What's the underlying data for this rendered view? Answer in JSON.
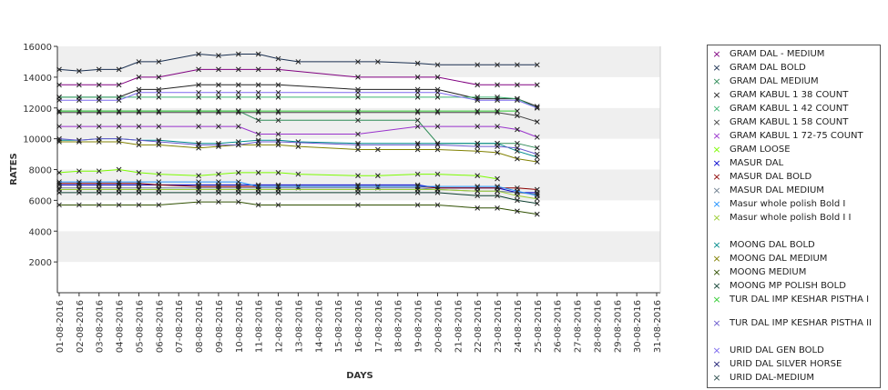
{
  "chart_data": {
    "type": "line",
    "title": "",
    "xlabel": "DAYS",
    "ylabel": "RATES",
    "ylim": [
      0,
      16000
    ],
    "yticks": [
      2000,
      4000,
      6000,
      8000,
      10000,
      12000,
      14000,
      16000
    ],
    "grid": true,
    "legend_position": "right",
    "x": [
      "01-08-2016",
      "02-08-2016",
      "03-08-2016",
      "04-08-2016",
      "05-08-2016",
      "06-08-2016",
      "07-08-2016",
      "08-08-2016",
      "09-08-2016",
      "10-08-2016",
      "11-08-2016",
      "12-08-2016",
      "13-08-2016",
      "14-08-2016",
      "15-08-2016",
      "16-08-2016",
      "17-08-2016",
      "18-08-2016",
      "19-08-2016",
      "20-08-2016",
      "21-08-2016",
      "22-08-2016",
      "23-08-2016",
      "24-08-2016",
      "25-08-2016",
      "26-08-2016",
      "27-08-2016",
      "28-08-2016",
      "29-08-2016",
      "30-08-2016",
      "31-08-2016"
    ],
    "series": [
      {
        "name": "GRAM DAL - MEDIUM",
        "color": "#800080",
        "values": [
          13500,
          13500,
          13500,
          13500,
          14000,
          14000,
          null,
          14500,
          14500,
          14500,
          14500,
          14500,
          null,
          null,
          null,
          14000,
          null,
          null,
          14000,
          14000,
          null,
          13500,
          13500,
          13500,
          13500,
          null,
          null,
          null,
          null,
          null,
          null
        ]
      },
      {
        "name": "GRAM DAL BOLD",
        "color": "#1a2f50",
        "values": [
          14500,
          14400,
          14500,
          14500,
          15000,
          15000,
          null,
          15500,
          15400,
          15500,
          15500,
          15200,
          15000,
          null,
          null,
          15000,
          15000,
          null,
          14900,
          14800,
          null,
          14800,
          14800,
          14800,
          14800,
          null,
          null,
          null,
          null,
          null,
          null
        ]
      },
      {
        "name": "GRAM DAL MEDIUM",
        "color": "#2e8b57",
        "values": [
          11800,
          11800,
          11800,
          11800,
          11800,
          11800,
          null,
          11800,
          11800,
          11800,
          11200,
          11200,
          null,
          null,
          null,
          11200,
          null,
          null,
          11200,
          9700,
          null,
          9700,
          9700,
          9700,
          9400,
          null,
          null,
          null,
          null,
          null,
          null
        ]
      },
      {
        "name": "GRAM KABUL 1 38 COUNT",
        "color": "#222222",
        "values": [
          12700,
          12700,
          12700,
          12700,
          13200,
          13200,
          null,
          13500,
          13500,
          13500,
          13500,
          13500,
          null,
          null,
          null,
          13200,
          null,
          null,
          13200,
          13200,
          null,
          12600,
          12600,
          12600,
          12100,
          null,
          null,
          null,
          null,
          null,
          null
        ]
      },
      {
        "name": "GRAM KABUL 1 42 COUNT",
        "color": "#3cb371",
        "values": [
          12700,
          12700,
          12700,
          12700,
          12700,
          12700,
          null,
          12700,
          12700,
          12700,
          12700,
          12700,
          null,
          null,
          null,
          12700,
          null,
          null,
          12700,
          12700,
          null,
          12700,
          12700,
          12600,
          12000,
          null,
          null,
          null,
          null,
          null,
          null
        ]
      },
      {
        "name": "GRAM KABUL 1 58 COUNT",
        "color": "#444444",
        "values": [
          11700,
          11700,
          11700,
          11700,
          11700,
          11700,
          null,
          11700,
          11700,
          11700,
          11700,
          11700,
          null,
          null,
          null,
          11700,
          null,
          null,
          11700,
          11700,
          null,
          11700,
          11700,
          11500,
          11100,
          null,
          null,
          null,
          null,
          null,
          null
        ]
      },
      {
        "name": "GRAM KABUL 1 72-75 COUNT",
        "color": "#9932cc",
        "values": [
          10800,
          10800,
          10800,
          10800,
          10800,
          10800,
          null,
          10800,
          10800,
          10800,
          10300,
          10300,
          null,
          null,
          null,
          10300,
          null,
          null,
          10800,
          10800,
          null,
          10800,
          10800,
          10600,
          10100,
          null,
          null,
          null,
          null,
          null,
          null
        ]
      },
      {
        "name": "GRAM LOOSE",
        "color": "#7cfc00",
        "values": [
          7800,
          7900,
          7900,
          8000,
          7800,
          7700,
          null,
          7600,
          7700,
          7800,
          7800,
          7800,
          7700,
          null,
          null,
          7600,
          7600,
          null,
          7700,
          7700,
          null,
          7600,
          7400,
          null,
          null,
          null,
          null,
          null,
          null,
          null,
          null
        ]
      },
      {
        "name": "MASUR DAL",
        "color": "#0000cd",
        "values": [
          7000,
          7000,
          7000,
          7000,
          7000,
          7000,
          null,
          7000,
          7000,
          7000,
          7000,
          7000,
          null,
          null,
          null,
          7000,
          null,
          null,
          7000,
          6800,
          null,
          6800,
          6800,
          6500,
          6500,
          null,
          null,
          null,
          null,
          null,
          null
        ]
      },
      {
        "name": "MASUR DAL BOLD",
        "color": "#8b0000",
        "values": [
          7100,
          7100,
          7100,
          7100,
          7100,
          7000,
          null,
          6900,
          6900,
          6900,
          6900,
          6900,
          6900,
          null,
          null,
          6900,
          6900,
          null,
          6900,
          6800,
          null,
          6800,
          6800,
          6800,
          6700,
          null,
          null,
          null,
          null,
          null,
          null
        ]
      },
      {
        "name": "MASUR DAL MEDIUM",
        "color": "#708090",
        "values": [
          6800,
          6800,
          6800,
          6800,
          6800,
          6800,
          null,
          6800,
          6800,
          6800,
          6800,
          6800,
          6800,
          null,
          null,
          6800,
          6800,
          null,
          6800,
          6700,
          null,
          6600,
          6600,
          6500,
          6400,
          null,
          null,
          null,
          null,
          null,
          null
        ]
      },
      {
        "name": "Masur whole polish Bold I",
        "color": "#1e90ff",
        "values": [
          7200,
          7200,
          7200,
          7200,
          7200,
          7200,
          null,
          7200,
          7200,
          7200,
          6900,
          6900,
          null,
          null,
          null,
          6900,
          null,
          null,
          6900,
          6900,
          null,
          6900,
          6900,
          6600,
          6300,
          null,
          null,
          null,
          null,
          null,
          null
        ]
      },
      {
        "name": "Masur whole polish Bold I I",
        "color": "#9acd32",
        "values": [
          6700,
          6700,
          6700,
          6700,
          6700,
          6700,
          null,
          6700,
          6700,
          6700,
          6700,
          6700,
          null,
          null,
          null,
          6700,
          null,
          null,
          6700,
          6700,
          null,
          6600,
          6600,
          6300,
          6100,
          null,
          null,
          null,
          null,
          null,
          null
        ]
      },
      {
        "name": "MOONG DAL BOLD",
        "color": "#008b8b",
        "values": [
          9900,
          9900,
          10000,
          10000,
          9900,
          9900,
          null,
          9700,
          9700,
          9800,
          9900,
          9900,
          9800,
          null,
          null,
          9700,
          null,
          null,
          9700,
          9700,
          null,
          9700,
          9700,
          9200,
          8800,
          null,
          null,
          null,
          null,
          null,
          null
        ]
      },
      {
        "name": "MOONG DAL MEDIUM",
        "color": "#808000",
        "values": [
          9800,
          9800,
          9800,
          9800,
          9600,
          9600,
          null,
          9400,
          9500,
          9600,
          9600,
          9600,
          9500,
          null,
          null,
          9300,
          9300,
          null,
          9300,
          9300,
          null,
          9200,
          9100,
          8700,
          8500,
          null,
          null,
          null,
          null,
          null,
          null
        ]
      },
      {
        "name": "MOONG MEDIUM",
        "color": "#2f4f00",
        "values": [
          5700,
          5700,
          5700,
          5700,
          5700,
          5700,
          null,
          5900,
          5900,
          5900,
          5700,
          5700,
          null,
          null,
          null,
          5700,
          null,
          null,
          5700,
          5700,
          null,
          5500,
          5500,
          5300,
          5100,
          null,
          null,
          null,
          null,
          null,
          null
        ]
      },
      {
        "name": "MOONG MP POLISH BOLD",
        "color": "#0b3d2e",
        "values": [
          6500,
          6500,
          6500,
          6500,
          6500,
          6500,
          null,
          6500,
          6500,
          6500,
          6500,
          6500,
          null,
          null,
          null,
          6500,
          null,
          null,
          6500,
          6500,
          null,
          6300,
          6300,
          6000,
          5800,
          null,
          null,
          null,
          null,
          null,
          null
        ]
      },
      {
        "name": "TUR DAL IMP KESHAR PISTHA I",
        "color": "#32cd32",
        "values": [
          11800,
          11800,
          11800,
          11800,
          11800,
          11800,
          null,
          11800,
          11800,
          11800,
          11800,
          11800,
          null,
          null,
          null,
          11800,
          null,
          null,
          11800,
          11800,
          null,
          11800,
          11800,
          11800,
          null,
          null,
          null,
          null,
          null,
          null,
          null
        ]
      },
      {
        "name": "TUR DAL IMP KESHAR PISTHA II",
        "color": "#6a5acd",
        "values": [
          10000,
          9900,
          10000,
          10000,
          9900,
          9800,
          null,
          9600,
          9600,
          9600,
          9800,
          9800,
          null,
          null,
          null,
          9600,
          null,
          null,
          9600,
          9600,
          null,
          9500,
          9500,
          9400,
          9000,
          null,
          null,
          null,
          null,
          null,
          null
        ]
      },
      {
        "name": "URID DAL GEN BOLD",
        "color": "#7b68ee",
        "values": [
          12500,
          12500,
          12500,
          12500,
          13000,
          13000,
          null,
          13000,
          13000,
          13000,
          13000,
          13000,
          null,
          null,
          null,
          13000,
          null,
          null,
          13000,
          13000,
          null,
          12500,
          12500,
          12500,
          12000,
          null,
          null,
          null,
          null,
          null,
          null
        ]
      },
      {
        "name": "URID DAL SILVER HORSE",
        "color": "#191970",
        "values": [
          null,
          null,
          null,
          null,
          null,
          null,
          null,
          null,
          null,
          null,
          null,
          null,
          null,
          null,
          null,
          null,
          null,
          null,
          null,
          null,
          null,
          null,
          null,
          null,
          null,
          null,
          null,
          null,
          null,
          null,
          null
        ]
      },
      {
        "name": "URID DAL-MEDIUM",
        "color": "#2f4f4f",
        "values": [
          null,
          null,
          null,
          null,
          null,
          null,
          null,
          null,
          null,
          null,
          null,
          null,
          null,
          null,
          null,
          null,
          null,
          null,
          null,
          null,
          null,
          null,
          null,
          null,
          null,
          null,
          null,
          null,
          null,
          null,
          null
        ]
      }
    ]
  },
  "legend": {
    "items": [
      {
        "label": "GRAM DAL - MEDIUM",
        "color": "#800080"
      },
      {
        "label": "GRAM DAL BOLD",
        "color": "#1a2f50"
      },
      {
        "label": "GRAM DAL MEDIUM",
        "color": "#2e8b57"
      },
      {
        "label": "GRAM KABUL 1 38 COUNT",
        "color": "#222222"
      },
      {
        "label": "GRAM KABUL 1 42 COUNT",
        "color": "#3cb371"
      },
      {
        "label": "GRAM KABUL 1 58 COUNT",
        "color": "#444444"
      },
      {
        "label": "GRAM KABUL 1 72-75 COUNT",
        "color": "#9932cc"
      },
      {
        "label": "GRAM LOOSE",
        "color": "#7cfc00"
      },
      {
        "label": "MASUR DAL",
        "color": "#0000cd"
      },
      {
        "label": "MASUR DAL BOLD",
        "color": "#8b0000"
      },
      {
        "label": "MASUR DAL MEDIUM",
        "color": "#708090"
      },
      {
        "label": "Masur whole polish Bold I",
        "color": "#1e90ff"
      },
      {
        "label": "Masur whole polish Bold I I",
        "color": "#9acd32"
      },
      {
        "label": "MOONG DAL BOLD",
        "color": "#008b8b"
      },
      {
        "label": "MOONG DAL MEDIUM",
        "color": "#808000"
      },
      {
        "label": "MOONG MEDIUM",
        "color": "#2f4f00"
      },
      {
        "label": "MOONG MP POLISH BOLD",
        "color": "#0b3d2e"
      },
      {
        "label": "TUR DAL IMP KESHAR PISTHA I",
        "color": "#32cd32"
      },
      {
        "label": "TUR DAL IMP KESHAR PISTHA II",
        "color": "#6a5acd"
      },
      {
        "label": "URID DAL GEN BOLD",
        "color": "#7b68ee"
      },
      {
        "label": "URID DAL SILVER HORSE",
        "color": "#191970"
      },
      {
        "label": "URID DAL-MEDIUM",
        "color": "#2f4f4f"
      }
    ]
  },
  "icons": {
    "marker": "x-marker-icon"
  }
}
